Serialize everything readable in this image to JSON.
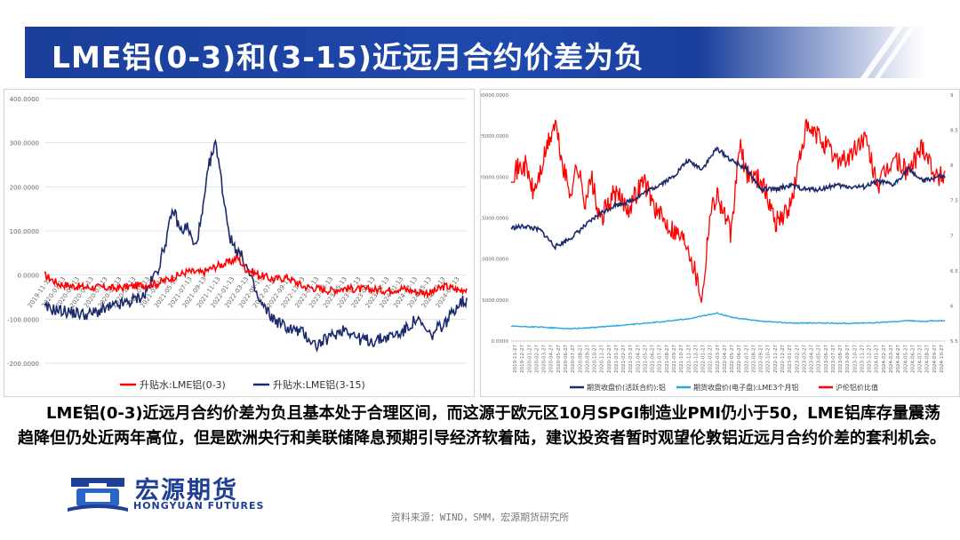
{
  "title": "LME铝(0-3)和(3-15)近远月合约价差为负",
  "body_text": "LME铝(0-3)近远月合约价差为负且基本处于合理区间，而这源于欧元区10月SPGI制造业PMI仍小于50，LME铝库存量震荡趋降但仍处近两年高位，但是欧洲央行和美联储降息预期引导经济软着陆，建议投资者暂时观望伦敦铝近远月合约价差的套利机会。",
  "logo": {
    "cn": "宏源期货",
    "en": "HONGYUAN FUTURES"
  },
  "source": "资料来源：WIND，SMM，宏源期货研究所",
  "colors": {
    "brand_blue": "#1f3f97",
    "red": "#ff0000",
    "navy": "#1c2a6e",
    "light_blue": "#29a7e1"
  },
  "chart_data": [
    {
      "type": "line",
      "ylim": [
        -200,
        400
      ],
      "y_ticks": [
        "400.0000",
        "300.0000",
        "200.0000",
        "100.0000",
        "0.0000",
        "-100.0000",
        "-200.0000"
      ],
      "x_ticks": [
        "2019-11-13",
        "2020-01-13",
        "2020-03-13",
        "2020-05-13",
        "2020-07-13",
        "2020-09-13",
        "2020-11-13",
        "2021-01-13",
        "2021-03-13",
        "2021-05-13",
        "2021-07-13",
        "2021-09-13",
        "2021-11-13",
        "2022-01-13",
        "2022-03-13",
        "2022-05-13",
        "2022-07-13",
        "2022-09-13",
        "2022-11-13",
        "2023-01-13",
        "2023-03-13",
        "2023-05-13",
        "2023-07-13",
        "2023-09-13",
        "2023-11-13",
        "2024-01-13",
        "2024-03-13",
        "2024-05-13",
        "2024-07-13",
        "2024-09-13"
      ],
      "legend_position": "bottom",
      "series": [
        {
          "name": "升贴水:LME铝(0-3)",
          "color": "#ff0000",
          "x": [
            0,
            2,
            4,
            6,
            8,
            10,
            12,
            14,
            16,
            18,
            20,
            22,
            24,
            26,
            27,
            28,
            30,
            32,
            34,
            36,
            38,
            40,
            42,
            44,
            46,
            48,
            50,
            52,
            54,
            56,
            58,
            59
          ],
          "values": [
            0,
            -20,
            -25,
            -28,
            -28,
            -30,
            -26,
            -22,
            -18,
            -5,
            8,
            5,
            20,
            30,
            40,
            15,
            0,
            -10,
            -5,
            -25,
            -30,
            -35,
            -30,
            -32,
            -33,
            -35,
            -30,
            -38,
            -40,
            -25,
            -35,
            -30
          ]
        },
        {
          "name": "升贴水:LME铝(3-15)",
          "color": "#1c2a6e",
          "x": [
            0,
            2,
            4,
            6,
            8,
            10,
            12,
            14,
            16,
            17,
            18,
            19,
            20,
            21,
            22,
            23,
            24,
            25,
            26,
            28,
            30,
            32,
            34,
            36,
            38,
            40,
            42,
            44,
            46,
            48,
            50,
            52,
            54,
            55,
            56,
            58,
            59
          ],
          "values": [
            -75,
            -80,
            -85,
            -90,
            -80,
            -70,
            -60,
            -45,
            20,
            80,
            150,
            100,
            110,
            60,
            130,
            250,
            300,
            180,
            80,
            30,
            -60,
            -100,
            -120,
            -130,
            -160,
            -140,
            -120,
            -145,
            -150,
            -140,
            -130,
            -100,
            -140,
            -120,
            -110,
            -60,
            -60
          ]
        }
      ]
    },
    {
      "type": "line",
      "y_left_ticks": [
        "30000.0000",
        "25000.0000",
        "20000.0000",
        "15000.0000",
        "10000.0000",
        "5000.0000",
        "0.0000"
      ],
      "y_right_ticks": [
        "9",
        "8.5",
        "8",
        "7.5",
        "7",
        "6.5",
        "6",
        "5.5"
      ],
      "ylim_left": [
        0,
        30000
      ],
      "ylim_right": [
        5.5,
        9
      ],
      "x_ticks": [
        "2019-11-27",
        "2019-12-27",
        "2020-01-27",
        "2020-02-27",
        "2020-03-27",
        "2020-04-27",
        "2020-05-27",
        "2020-06-27",
        "2020-07-27",
        "2020-08-27",
        "2020-09-27",
        "2020-10-27",
        "2020-11-27",
        "2020-12-27",
        "2021-01-27",
        "2021-02-27",
        "2021-03-27",
        "2021-04-27",
        "2021-05-27",
        "2021-06-27",
        "2021-07-27",
        "2021-08-27",
        "2021-09-27",
        "2021-10-27",
        "2021-11-27",
        "2021-12-27",
        "2022-01-27",
        "2022-02-27",
        "2022-03-27",
        "2022-04-27",
        "2022-05-27",
        "2022-06-27",
        "2022-07-27",
        "2022-08-27",
        "2022-09-27",
        "2022-10-27",
        "2022-11-27",
        "2022-12-27",
        "2023-01-27",
        "2023-02-27",
        "2023-03-27",
        "2023-04-27",
        "2023-05-27",
        "2023-06-27",
        "2023-07-27",
        "2023-08-27",
        "2023-09-27",
        "2023-10-27",
        "2023-11-27",
        "2023-12-27",
        "2024-01-27",
        "2024-02-27",
        "2024-03-27",
        "2024-04-27",
        "2024-05-27",
        "2024-06-27",
        "2024-07-27",
        "2024-08-27",
        "2024-09-27",
        "2024-10-27"
      ],
      "legend_position": "bottom",
      "series": [
        {
          "name": "期货收盘价(活跃合约):铝",
          "color": "#1c2a6e",
          "axis": "left",
          "x": [
            0,
            2,
            4,
            6,
            8,
            10,
            12,
            14,
            16,
            18,
            20,
            22,
            24,
            26,
            28,
            30,
            32,
            34,
            36,
            38,
            40,
            42,
            44,
            46,
            48,
            50,
            52,
            54,
            56,
            58,
            59
          ],
          "values": [
            13800,
            14000,
            13500,
            11500,
            12500,
            14000,
            15500,
            16500,
            17000,
            18000,
            19000,
            20000,
            22000,
            21000,
            23500,
            22000,
            21000,
            18500,
            18500,
            19000,
            18500,
            18500,
            19000,
            18800,
            18800,
            19500,
            19000,
            21000,
            19500,
            20000,
            20000
          ]
        },
        {
          "name": "期货收盘价(电子盘):LME3个月铝",
          "color": "#29a7e1",
          "axis": "left",
          "x": [
            0,
            4,
            8,
            12,
            16,
            20,
            24,
            28,
            30,
            34,
            38,
            42,
            46,
            50,
            54,
            56,
            59
          ],
          "values": [
            1800,
            1700,
            1500,
            1700,
            2000,
            2300,
            2700,
            3400,
            2900,
            2400,
            2200,
            2200,
            2150,
            2250,
            2500,
            2400,
            2500
          ]
        },
        {
          "name": "沪伦铝价比值",
          "color": "#ff0000",
          "axis": "right",
          "x": [
            0,
            2,
            3,
            4,
            5,
            6,
            7,
            8,
            9,
            10,
            11,
            12,
            14,
            16,
            18,
            20,
            22,
            24,
            26,
            27,
            28,
            30,
            31,
            32,
            34,
            36,
            38,
            40,
            42,
            44,
            46,
            48,
            50,
            52,
            54,
            56,
            58,
            59
          ],
          "values": [
            7.9,
            8.0,
            7.6,
            7.9,
            8.3,
            8.6,
            8.0,
            7.6,
            8.0,
            7.5,
            7.8,
            7.2,
            7.6,
            7.4,
            7.8,
            7.3,
            7.1,
            6.9,
            6.1,
            7.3,
            7.6,
            7.0,
            8.3,
            7.9,
            7.8,
            7.2,
            7.4,
            8.5,
            8.4,
            8.1,
            8.1,
            8.4,
            7.7,
            8.1,
            7.9,
            8.3,
            7.8,
            7.9
          ]
        }
      ]
    }
  ]
}
